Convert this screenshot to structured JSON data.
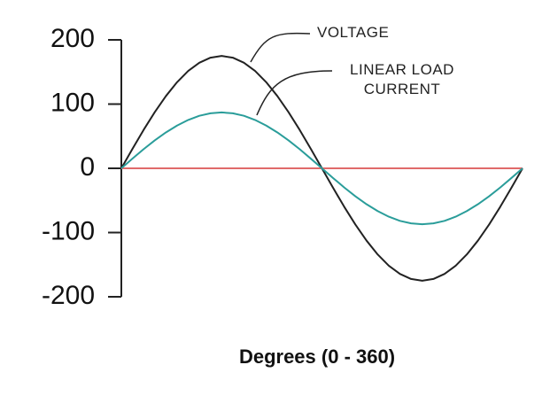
{
  "chart_data": {
    "type": "line",
    "x_label": "Degrees (0 - 360)",
    "x": [
      0,
      10,
      20,
      30,
      40,
      50,
      60,
      70,
      80,
      90,
      100,
      110,
      120,
      130,
      140,
      150,
      160,
      170,
      180,
      190,
      200,
      210,
      220,
      230,
      240,
      250,
      260,
      270,
      280,
      290,
      300,
      310,
      320,
      330,
      340,
      350,
      360
    ],
    "series": [
      {
        "name": "VOLTAGE",
        "color": "#222222",
        "values": [
          0,
          30.4,
          59.9,
          87.5,
          112.5,
          134.1,
          151.6,
          164.4,
          172.3,
          175,
          172.3,
          164.4,
          151.6,
          134.1,
          112.5,
          87.5,
          59.9,
          30.4,
          0,
          -30.4,
          -59.9,
          -87.5,
          -112.5,
          -134.1,
          -151.6,
          -164.4,
          -172.3,
          -175,
          -172.3,
          -164.4,
          -151.6,
          -134.1,
          -112.5,
          -87.5,
          -59.9,
          -30.4,
          0
        ]
      },
      {
        "name": "LINEAR LOAD CURRENT",
        "color": "#2a9d9a",
        "values": [
          0,
          15.1,
          29.8,
          43.5,
          55.9,
          66.6,
          75.3,
          81.8,
          85.7,
          87,
          85.7,
          81.8,
          75.3,
          66.6,
          55.9,
          43.5,
          29.8,
          15.1,
          0,
          -15.1,
          -29.8,
          -43.5,
          -55.9,
          -66.6,
          -75.3,
          -81.8,
          -85.7,
          -87,
          -85.7,
          -81.8,
          -75.3,
          -66.6,
          -55.9,
          -43.5,
          -29.8,
          -15.1,
          0
        ]
      }
    ],
    "xlim": [
      0,
      360
    ],
    "ylim": [
      -200,
      200
    ],
    "yticks": [
      200,
      100,
      0,
      -100,
      -200
    ],
    "zero_line_color": "#e06a6a"
  }
}
